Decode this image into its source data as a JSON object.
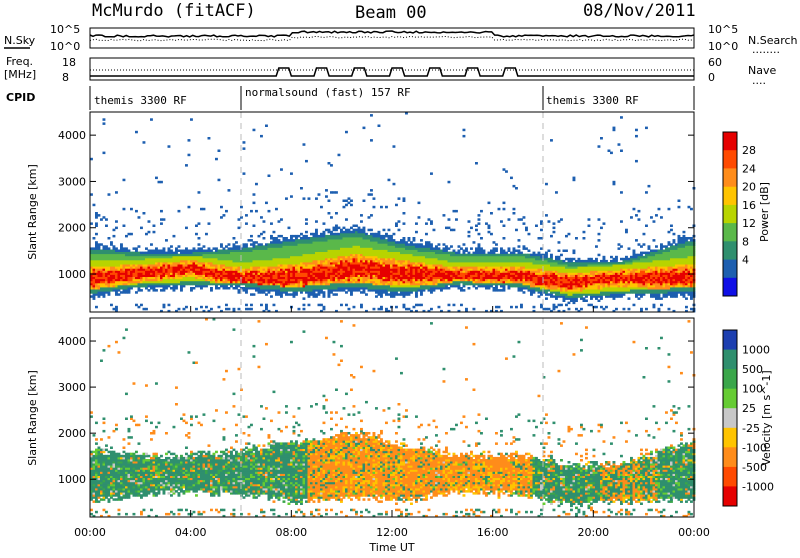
{
  "header": {
    "station": "McMurdo (fitACF)",
    "beam": "Beam 00",
    "date": "08/Nov/2011"
  },
  "top_panel": {
    "left_label": "N.Sky",
    "right_label": "N.Search",
    "right_legend": "........",
    "left_ticks": [
      "10^5",
      "10^0"
    ],
    "right_ticks": [
      "10^5",
      "10^0"
    ]
  },
  "freq_panel": {
    "left_label_1": "Freq.",
    "left_label_2": "[MHz]",
    "right_label": "Nave",
    "right_legend": "....",
    "left_ticks": [
      "18",
      "8"
    ],
    "right_ticks": [
      "60",
      "0"
    ]
  },
  "cpid": {
    "label": "CPID",
    "segments": [
      {
        "text": "themis 3300 RF",
        "start_hour": 0
      },
      {
        "text": "normalsound (fast) 157 RF",
        "start_hour": 6
      },
      {
        "text": "themis 3300 RF",
        "start_hour": 18
      }
    ]
  },
  "chart_data": [
    {
      "type": "heatmap",
      "name": "power-panel",
      "ylabel": "Slant Range [km]",
      "xlabel": "",
      "x_range_hours": [
        0,
        24
      ],
      "ylim": [
        180,
        4500
      ],
      "yticks": [
        1000,
        2000,
        3000,
        4000
      ],
      "colorbar": {
        "label": "Power [dB]",
        "ticks": [
          "28",
          "24",
          "20",
          "16",
          "12",
          "8",
          "4"
        ],
        "colors": [
          "#e60000",
          "#ff4a00",
          "#ff8c1a",
          "#ffc400",
          "#b8d400",
          "#5ab84a",
          "#2f8f6e",
          "#1d5fb0",
          "#1010e6"
        ]
      },
      "band_profile": [
        {
          "hour": 0.2,
          "low": 500,
          "high": 1600,
          "peak": 900
        },
        {
          "hour": 2.0,
          "low": 650,
          "high": 1500,
          "peak": 1000
        },
        {
          "hour": 4.0,
          "low": 700,
          "high": 1500,
          "peak": 1100
        },
        {
          "hour": 6.0,
          "low": 650,
          "high": 1600,
          "peak": 900
        },
        {
          "hour": 8.0,
          "low": 500,
          "high": 1800,
          "peak": 900
        },
        {
          "hour": 10.5,
          "low": 600,
          "high": 2000,
          "peak": 1100
        },
        {
          "hour": 12.5,
          "low": 500,
          "high": 1700,
          "peak": 1000
        },
        {
          "hour": 14.5,
          "low": 700,
          "high": 1500,
          "peak": 950
        },
        {
          "hour": 17.0,
          "low": 650,
          "high": 1500,
          "peak": 950
        },
        {
          "hour": 19.0,
          "low": 400,
          "high": 1300,
          "peak": 800
        },
        {
          "hour": 21.0,
          "low": 500,
          "high": 1300,
          "peak": 900
        },
        {
          "hour": 23.8,
          "low": 500,
          "high": 1800,
          "peak": 900
        }
      ]
    },
    {
      "type": "heatmap",
      "name": "velocity-panel",
      "ylabel": "Slant Range [km]",
      "xlabel": "Time UT",
      "x_range_hours": [
        0,
        24
      ],
      "ylim": [
        180,
        4500
      ],
      "yticks": [
        1000,
        2000,
        3000,
        4000
      ],
      "xticks": [
        "00:00",
        "04:00",
        "08:00",
        "12:00",
        "16:00",
        "20:00",
        "00:00"
      ],
      "colorbar": {
        "label": "Velocity [m s^-1]",
        "ticks": [
          "1000",
          "500",
          "100",
          "25",
          "-25",
          "-100",
          "-500",
          "-1000"
        ],
        "colors": [
          "#1d3fb0",
          "#2f8f6e",
          "#3aa64a",
          "#66cc33",
          "#c8c8c8",
          "#ffc400",
          "#ff8c1a",
          "#ff4a00",
          "#e60000"
        ]
      }
    }
  ]
}
